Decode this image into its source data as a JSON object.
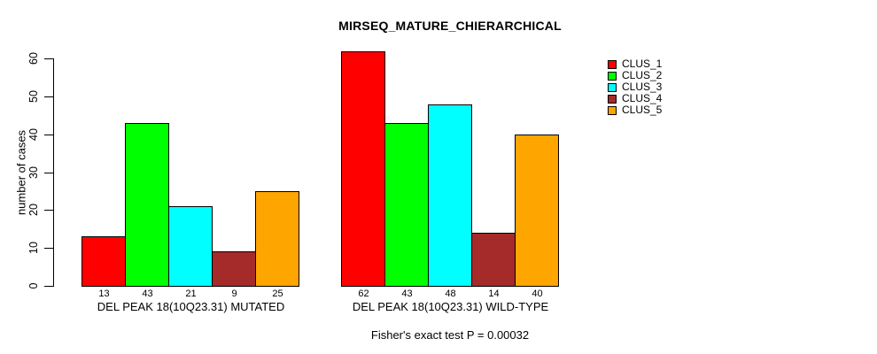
{
  "chart_data": {
    "type": "bar",
    "title": "MIRSEQ_MATURE_CHIERARCHICAL",
    "ylabel": "number of cases",
    "xlabel": "",
    "ylim": [
      0,
      60
    ],
    "yticks": [
      0,
      10,
      20,
      30,
      40,
      50,
      60
    ],
    "grid": false,
    "legend_position": "right",
    "series": [
      "CLUS_1",
      "CLUS_2",
      "CLUS_3",
      "CLUS_4",
      "CLUS_5"
    ],
    "series_colors": [
      "#ff0000",
      "#00ff00",
      "#00ffff",
      "#a52a2a",
      "#ffa500"
    ],
    "bar_border_color": "#000000",
    "groups": [
      {
        "label": "DEL PEAK 18(10Q23.31) MUTATED",
        "values": [
          13,
          43,
          21,
          9,
          25
        ]
      },
      {
        "label": "DEL PEAK 18(10Q23.31) WILD-TYPE",
        "values": [
          62,
          43,
          48,
          14,
          40
        ]
      }
    ],
    "value_labels_shown": true,
    "annotation": "Fisher's exact test P = 0.00032",
    "legend": [
      {
        "label": "CLUS_1",
        "color": "#ff0000"
      },
      {
        "label": "CLUS_2",
        "color": "#00ff00"
      },
      {
        "label": "CLUS_3",
        "color": "#00ffff"
      },
      {
        "label": "CLUS_4",
        "color": "#a52a2a"
      },
      {
        "label": "CLUS_5",
        "color": "#ffa500"
      }
    ]
  }
}
